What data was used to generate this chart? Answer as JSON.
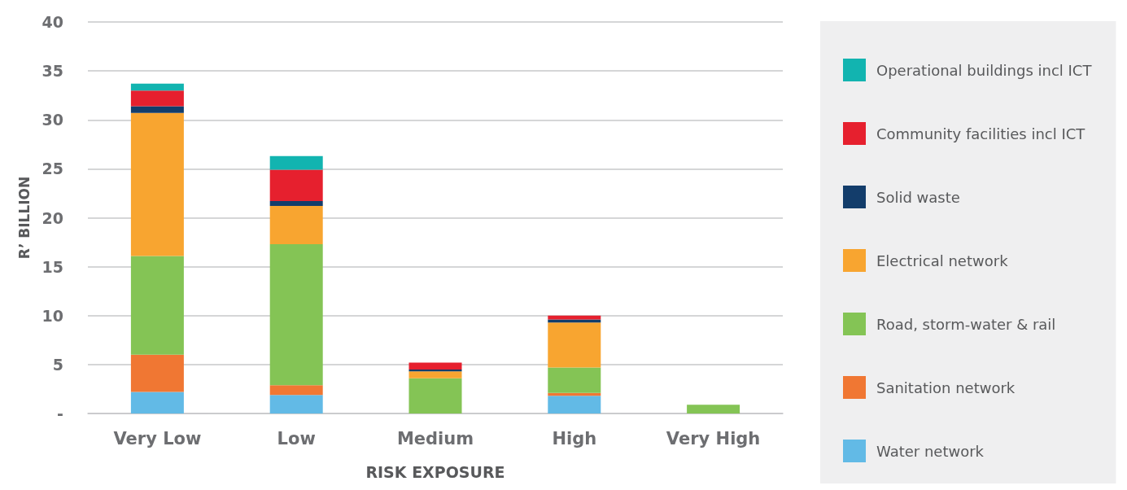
{
  "chart_data": {
    "type": "bar",
    "stacked": true,
    "xlabel": "RISK EXPOSURE",
    "ylabel": "R’ BILLION",
    "categories": [
      "Very Low",
      "Low",
      "Medium",
      "High",
      "Very High"
    ],
    "series": [
      {
        "name": "Water network",
        "color": "#62bae6",
        "values": [
          2.2,
          1.9,
          null,
          1.8,
          null
        ]
      },
      {
        "name": "Sanitation network",
        "color": "#f07733",
        "values": [
          3.8,
          1.0,
          null,
          0.3,
          null
        ]
      },
      {
        "name": "Road, storm-water & rail",
        "color": "#84c455",
        "values": [
          10.1,
          14.4,
          3.6,
          2.6,
          0.9
        ]
      },
      {
        "name": "Electrical network",
        "color": "#f8a530",
        "values": [
          14.6,
          3.9,
          0.7,
          4.6,
          null
        ]
      },
      {
        "name": "Solid waste",
        "color": "#133d6b",
        "values": [
          0.7,
          0.5,
          0.2,
          0.3,
          null
        ]
      },
      {
        "name": "Community facilities incl ICT",
        "color": "#e6202e",
        "values": [
          1.6,
          3.2,
          0.7,
          0.4,
          null
        ]
      },
      {
        "name": "Operational buildings incl ICT",
        "color": "#12b4b0",
        "values": [
          0.7,
          1.4,
          null,
          null,
          null
        ]
      }
    ],
    "ylim": [
      0,
      40
    ],
    "yticks": [
      {
        "value": 0,
        "label": "-"
      },
      5,
      10,
      15,
      20,
      25,
      30,
      35,
      40
    ],
    "grid": "y",
    "legend": "right"
  }
}
